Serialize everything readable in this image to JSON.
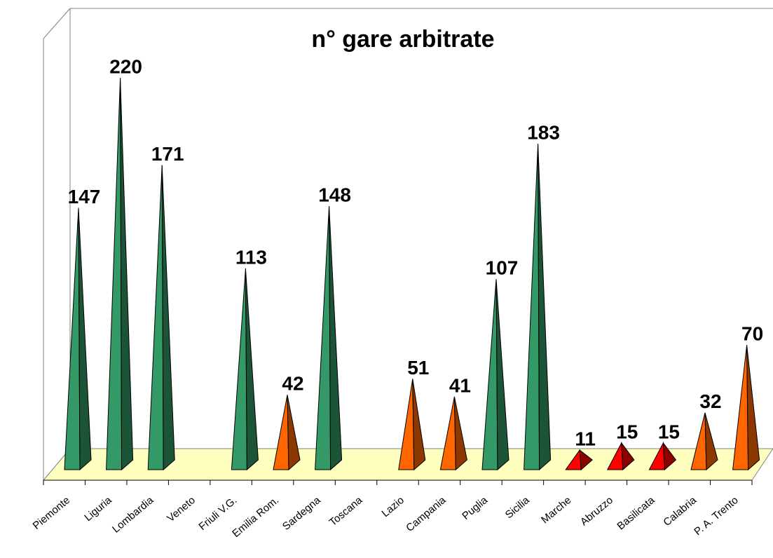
{
  "chart_data": {
    "type": "pyramid",
    "title": "n° gare arbitrate",
    "categories": [
      "Piemonte",
      "Liguria",
      "Lombardia",
      "Veneto",
      "Friuli V.G.",
      "Emilia Rom.",
      "Sardegna",
      "Toscana",
      "Lazio",
      "Campania",
      "Puglia",
      "Sicilia",
      "Marche",
      "Abruzzo",
      "Basilicata",
      "Calabria",
      "P. A. Trento"
    ],
    "values": [
      147,
      220,
      171,
      null,
      113,
      42,
      148,
      null,
      51,
      41,
      107,
      183,
      11,
      15,
      15,
      32,
      70
    ],
    "colors": [
      "#339966",
      "#339966",
      "#339966",
      null,
      "#339966",
      "#ff6600",
      "#339966",
      null,
      "#ff6600",
      "#ff6600",
      "#339966",
      "#339966",
      "#ff0000",
      "#ff0000",
      "#ff0000",
      "#ff6600",
      "#ff6600"
    ]
  }
}
